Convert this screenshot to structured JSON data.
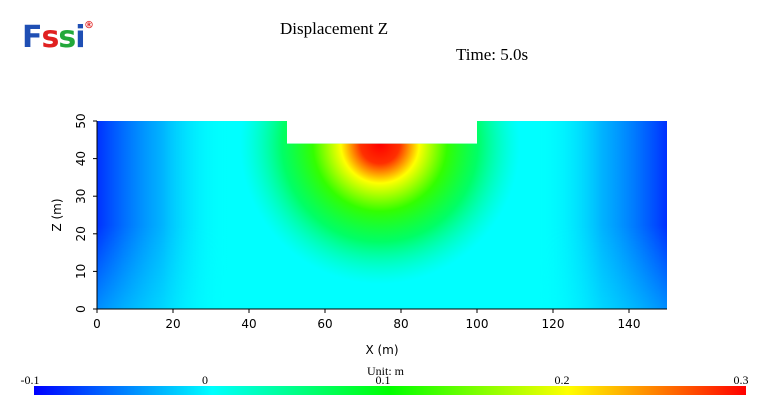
{
  "logo": {
    "text_F": "F",
    "text_s1": "s",
    "text_s2": "s",
    "text_i": "i",
    "reg": "®"
  },
  "header": {
    "title": "Displacement Z",
    "time": "Time: 5.0s"
  },
  "colorbar": {
    "unit_label": "Unit:   m",
    "ticks": [
      "-0.1",
      "0",
      "0.1",
      "0.2",
      "0.3"
    ],
    "colors": [
      "#0000ff",
      "#00ffff",
      "#00ff00",
      "#ffff00",
      "#ff0000"
    ]
  },
  "chart_data": {
    "type": "heatmap",
    "title": "Displacement Z",
    "xlabel": "X (m)",
    "ylabel": "Z (m)",
    "xlim": [
      0,
      150
    ],
    "ylim": [
      0,
      50
    ],
    "xticks": [
      0,
      20,
      40,
      60,
      80,
      100,
      120,
      140
    ],
    "yticks": [
      0,
      10,
      20,
      30,
      40,
      50
    ],
    "domain_outline": [
      [
        0,
        0
      ],
      [
        150,
        0
      ],
      [
        150,
        50
      ],
      [
        100,
        50
      ],
      [
        100,
        44
      ],
      [
        50,
        44
      ],
      [
        50,
        50
      ],
      [
        0,
        50
      ]
    ],
    "value_range": [
      -0.1,
      0.3
    ],
    "field_samples": [
      {
        "x": 0,
        "z": 50,
        "value": -0.09
      },
      {
        "x": 0,
        "z": 0,
        "value": 0.0
      },
      {
        "x": 25,
        "z": 40,
        "value": 0.0
      },
      {
        "x": 50,
        "z": 20,
        "value": 0.08
      },
      {
        "x": 75,
        "z": 43,
        "value": 0.29
      },
      {
        "x": 75,
        "z": 35,
        "value": 0.18
      },
      {
        "x": 75,
        "z": 22,
        "value": 0.1
      },
      {
        "x": 75,
        "z": 5,
        "value": 0.03
      },
      {
        "x": 100,
        "z": 20,
        "value": 0.08
      },
      {
        "x": 125,
        "z": 40,
        "value": 0.0
      },
      {
        "x": 150,
        "z": 50,
        "value": -0.09
      },
      {
        "x": 150,
        "z": 0,
        "value": 0.0
      }
    ]
  }
}
